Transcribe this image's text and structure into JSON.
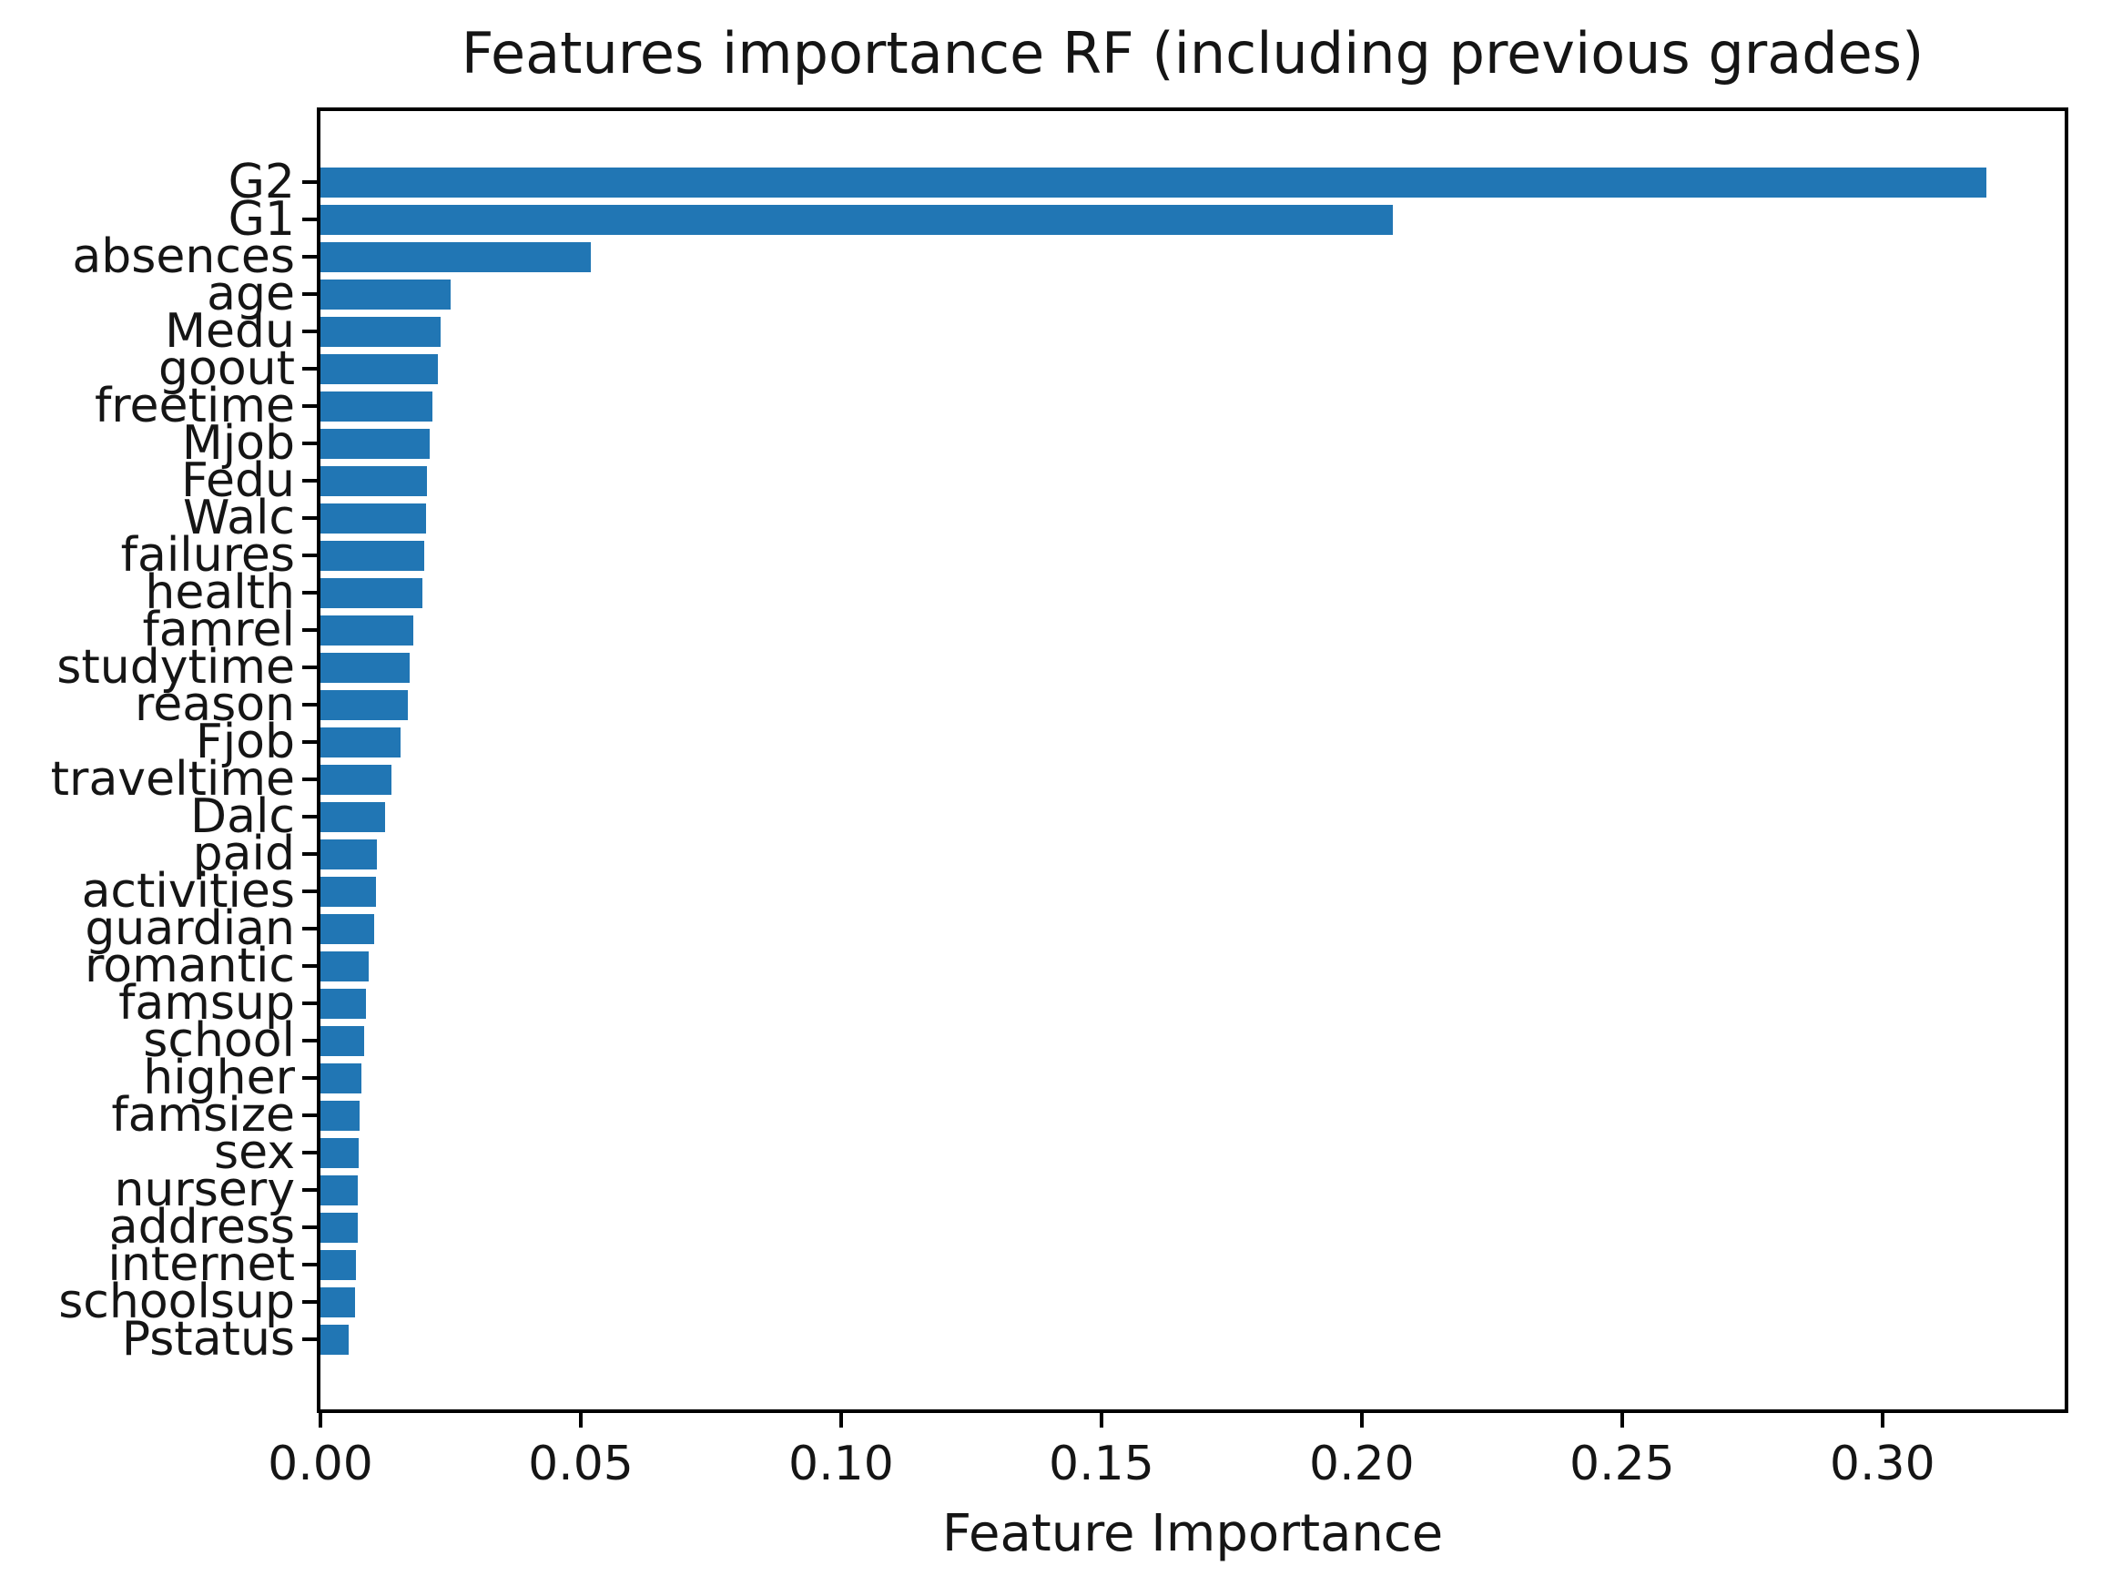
{
  "chart_data": {
    "type": "bar",
    "orientation": "horizontal",
    "title": "Features importance RF (including previous grades)",
    "xlabel": "Feature Importance",
    "ylabel": "",
    "xlim": [
      0,
      0.335
    ],
    "xtick_labels": [
      "0.00",
      "0.05",
      "0.10",
      "0.15",
      "0.20",
      "0.25",
      "0.30"
    ],
    "xtick_values": [
      0.0,
      0.05,
      0.1,
      0.15,
      0.2,
      0.25,
      0.3
    ],
    "grid": false,
    "legend_position": "none",
    "bar_color": "#2176b4",
    "axis_color": "#000000",
    "text_color": "#151515",
    "background_color": "#ffffff",
    "categories": [
      "G2",
      "G1",
      "absences",
      "age",
      "Medu",
      "goout",
      "freetime",
      "Mjob",
      "Fedu",
      "Walc",
      "failures",
      "health",
      "famrel",
      "studytime",
      "reason",
      "Fjob",
      "traveltime",
      "Dalc",
      "paid",
      "activities",
      "guardian",
      "romantic",
      "famsup",
      "school",
      "higher",
      "famsize",
      "sex",
      "nursery",
      "address",
      "internet",
      "schoolsup",
      "Pstatus"
    ],
    "values": [
      0.32,
      0.206,
      0.052,
      0.025,
      0.023,
      0.0225,
      0.0215,
      0.021,
      0.0205,
      0.0202,
      0.02,
      0.0196,
      0.0178,
      0.0171,
      0.0167,
      0.0153,
      0.0136,
      0.0125,
      0.0108,
      0.0106,
      0.0104,
      0.0092,
      0.0088,
      0.0084,
      0.0078,
      0.0076,
      0.0074,
      0.0072,
      0.0071,
      0.0069,
      0.0067,
      0.0055
    ]
  }
}
